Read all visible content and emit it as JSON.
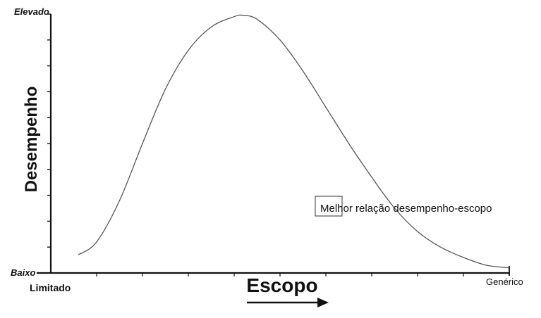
{
  "chart_data": {
    "type": "line",
    "title": "",
    "xlabel": "Escopo",
    "ylabel": "Desempenho",
    "x_ticklabels": {
      "start": "Limitado",
      "end": "Genérico"
    },
    "y_ticklabels": {
      "start": "Baixo",
      "end": "Elevado"
    },
    "xlim": [
      0,
      100
    ],
    "ylim": [
      0,
      100
    ],
    "grid": false,
    "series": [
      {
        "x": [
          6,
          10,
          15,
          20,
          25,
          30,
          35,
          40,
          42,
          45,
          50,
          55,
          60,
          65,
          70,
          75,
          80,
          85,
          90,
          95,
          100
        ],
        "y": [
          7,
          12,
          28,
          50,
          71,
          86,
          95,
          99,
          99.5,
          98,
          90,
          78,
          64,
          50,
          37,
          25,
          16,
          10,
          6,
          3,
          2
        ]
      }
    ],
    "annotations": [
      {
        "text": "Melhor relação desempenho-escopo"
      }
    ],
    "colors": {
      "axis": "#111111",
      "curve": "#555555"
    }
  }
}
